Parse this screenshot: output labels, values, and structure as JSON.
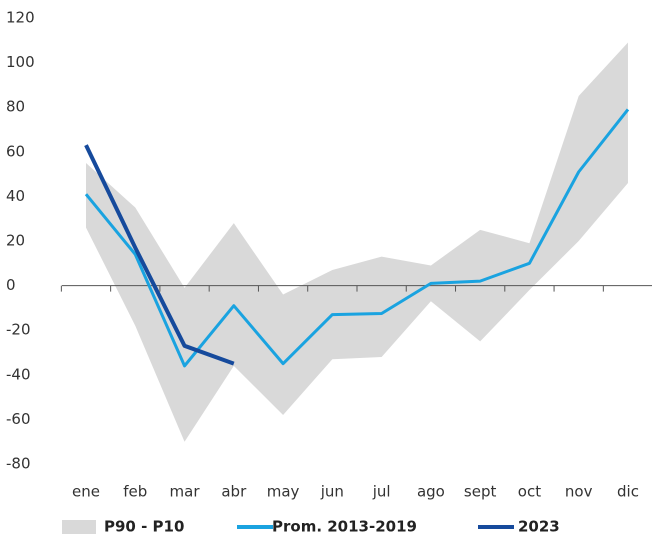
{
  "chart_data": {
    "type": "line",
    "categories": [
      "ene",
      "feb",
      "mar",
      "abr",
      "may",
      "jun",
      "jul",
      "ago",
      "sept",
      "oct",
      "nov",
      "dic"
    ],
    "series": [
      {
        "name": "P90 - P10",
        "color": "#d9d9d9",
        "kind": "band",
        "upper": [
          55,
          35,
          -1,
          28,
          -4,
          7,
          13,
          9,
          25,
          19,
          85,
          109
        ],
        "lower": [
          26,
          -18,
          -70,
          -36,
          -58,
          -33,
          -32,
          -7,
          -25,
          -2,
          20,
          46
        ]
      },
      {
        "name": "Prom. 2013-2019",
        "color": "#1aa3e0",
        "values": [
          41,
          14,
          -36,
          -9,
          -35,
          -13,
          -12.5,
          1,
          2,
          10,
          51,
          79
        ]
      },
      {
        "name": "2023",
        "color": "#164a9c",
        "values": [
          63,
          17,
          -27,
          -35,
          null,
          null,
          null,
          null,
          null,
          null,
          null,
          null
        ]
      }
    ],
    "ylim": [
      -80,
      120
    ],
    "yticks": [
      -80,
      -60,
      -40,
      -20,
      0,
      20,
      40,
      60,
      80,
      100,
      120
    ],
    "legend": "bottom"
  }
}
